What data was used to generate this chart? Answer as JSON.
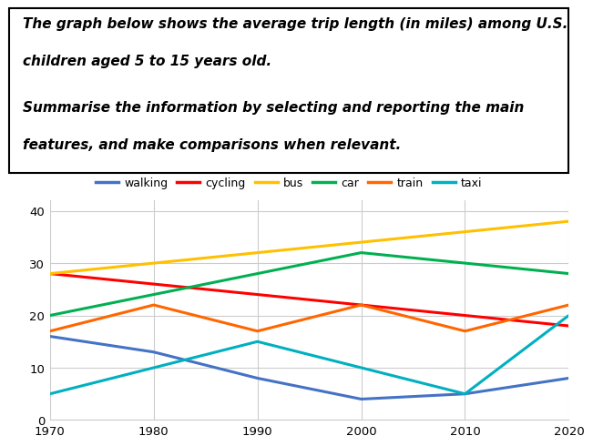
{
  "years": [
    1970,
    1980,
    1990,
    2000,
    2010,
    2020
  ],
  "series": {
    "walking": {
      "values": [
        16,
        13,
        8,
        4,
        5,
        8
      ],
      "color": "#4472C4"
    },
    "cycling": {
      "values": [
        28,
        26,
        24,
        22,
        20,
        18
      ],
      "color": "#FF0000"
    },
    "bus": {
      "values": [
        28,
        30,
        32,
        34,
        36,
        38
      ],
      "color": "#FFC000"
    },
    "car": {
      "values": [
        20,
        24,
        28,
        32,
        30,
        28
      ],
      "color": "#00B050"
    },
    "train": {
      "values": [
        17,
        22,
        17,
        22,
        17,
        22
      ],
      "color": "#FF6600"
    },
    "taxi": {
      "values": [
        5,
        10,
        15,
        10,
        5,
        20
      ],
      "color": "#00B0C0"
    }
  },
  "text_line1": "The graph below shows the average trip length (in miles) among U.S.",
  "text_line2": "children aged 5 to 15 years old.",
  "text_line3": "",
  "text_line4": "Summarise the information by selecting and reporting the main",
  "text_line5": "features, and make comparisons when relevant.",
  "ylim": [
    0,
    42
  ],
  "yticks": [
    0,
    10,
    20,
    30,
    40
  ],
  "xticks": [
    1970,
    1980,
    1990,
    2000,
    2010,
    2020
  ],
  "background_color": "#FFFFFF",
  "grid_color": "#CCCCCC"
}
